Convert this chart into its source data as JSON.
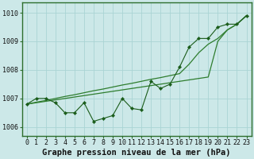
{
  "xlabel": "Graphe pression niveau de la mer (hPa)",
  "x": [
    0,
    1,
    2,
    3,
    4,
    5,
    6,
    7,
    8,
    9,
    10,
    11,
    12,
    13,
    14,
    15,
    16,
    17,
    18,
    19,
    20,
    21,
    22,
    23
  ],
  "line_detail": [
    1006.8,
    1007.0,
    1007.0,
    1006.85,
    1006.5,
    1006.5,
    1006.85,
    1006.2,
    1006.3,
    1006.4,
    1007.0,
    1006.65,
    1006.6,
    1007.6,
    1007.35,
    1007.5,
    1008.1,
    1008.8,
    1009.1,
    1009.1,
    1009.5,
    1009.6,
    1009.6,
    1009.9
  ],
  "line_trend1": [
    1006.8,
    1006.87,
    1006.93,
    1007.0,
    1007.07,
    1007.13,
    1007.2,
    1007.27,
    1007.33,
    1007.4,
    1007.47,
    1007.53,
    1007.6,
    1007.67,
    1007.73,
    1007.8,
    1007.87,
    1008.2,
    1008.6,
    1008.9,
    1009.1,
    1009.4,
    1009.6,
    1009.9
  ],
  "line_trend2": [
    1006.8,
    1006.85,
    1006.9,
    1006.95,
    1007.0,
    1007.05,
    1007.1,
    1007.15,
    1007.2,
    1007.25,
    1007.3,
    1007.35,
    1007.4,
    1007.45,
    1007.5,
    1007.55,
    1007.6,
    1007.65,
    1007.7,
    1007.75,
    1009.0,
    1009.4,
    1009.6,
    1009.9
  ],
  "ylim": [
    1005.7,
    1010.35
  ],
  "yticks": [
    1006,
    1007,
    1008,
    1009,
    1010
  ],
  "xticks": [
    0,
    1,
    2,
    3,
    4,
    5,
    6,
    7,
    8,
    9,
    10,
    11,
    12,
    13,
    14,
    15,
    16,
    17,
    18,
    19,
    20,
    21,
    22,
    23
  ],
  "bg_color": "#cce8e8",
  "grid_color": "#aad4d4",
  "line_color_detail": "#1a5c1a",
  "line_color_trend": "#2e7d2e",
  "xlabel_fontsize": 7.5,
  "tick_fontsize": 6.0
}
